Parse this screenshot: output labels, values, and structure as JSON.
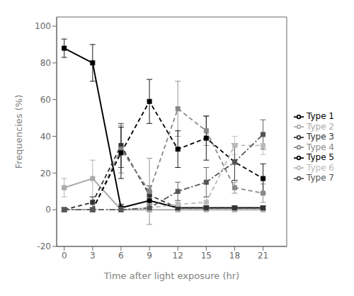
{
  "chart_data": {
    "type": "line",
    "x": [
      0,
      3,
      6,
      9,
      12,
      15,
      18,
      21
    ],
    "series": [
      {
        "name": "Type 1",
        "color": "#000000",
        "line_style": "solid",
        "marker": "square",
        "values": [
          88,
          80,
          1,
          5,
          1,
          1,
          1,
          1
        ],
        "errors": [
          5,
          10,
          2,
          5,
          1,
          1,
          1,
          1
        ]
      },
      {
        "name": "Type 2",
        "color": "#aaaaaa",
        "line_style": "solid",
        "marker": "square",
        "values": [
          12,
          17,
          0,
          0,
          0,
          0,
          0,
          0
        ],
        "errors": [
          5,
          10,
          1,
          1,
          1,
          1,
          1,
          1
        ]
      },
      {
        "name": "Type 3",
        "color": "#333333",
        "line_style": "dashed",
        "marker": "square",
        "values": [
          0,
          4,
          35,
          8,
          1,
          1,
          1,
          1
        ],
        "errors": [
          1,
          3,
          12,
          5,
          1,
          1,
          1,
          1
        ]
      },
      {
        "name": "Type 4",
        "color": "#888888",
        "line_style": "dashed",
        "marker": "square",
        "values": [
          0,
          0,
          33,
          10,
          55,
          43,
          12,
          9
        ],
        "errors": [
          1,
          1,
          13,
          18,
          15,
          8,
          3,
          5
        ]
      },
      {
        "name": "Type 5",
        "color": "#000000",
        "line_style": "dashed",
        "marker": "square",
        "values": [
          0,
          0,
          31,
          59,
          33,
          39,
          26,
          17
        ],
        "errors": [
          1,
          1,
          14,
          12,
          10,
          12,
          10,
          8
        ]
      },
      {
        "name": "Type 6",
        "color": "#bbbbbb",
        "line_style": "dashed",
        "marker": "square",
        "values": [
          0,
          0,
          0,
          1,
          3,
          4,
          35,
          35
        ],
        "errors": [
          1,
          1,
          1,
          1,
          2,
          3,
          5,
          5
        ]
      },
      {
        "name": "Type 7",
        "color": "#555555",
        "line_style": "dashdot",
        "marker": "square",
        "values": [
          0,
          0,
          0,
          1,
          10,
          15,
          26,
          41
        ],
        "errors": [
          1,
          1,
          1,
          2,
          5,
          8,
          10,
          8
        ]
      }
    ],
    "xlabel": "Time after light exposure (hr)",
    "ylabel": "Frequencies (%)",
    "xlim": [
      -0.8,
      23.5
    ],
    "ylim": [
      -20,
      105
    ],
    "xticks": [
      0,
      3,
      6,
      9,
      12,
      15,
      18,
      21
    ],
    "yticks": [
      -20,
      0,
      20,
      40,
      60,
      80,
      100
    ],
    "grid": false,
    "legend": "right"
  }
}
